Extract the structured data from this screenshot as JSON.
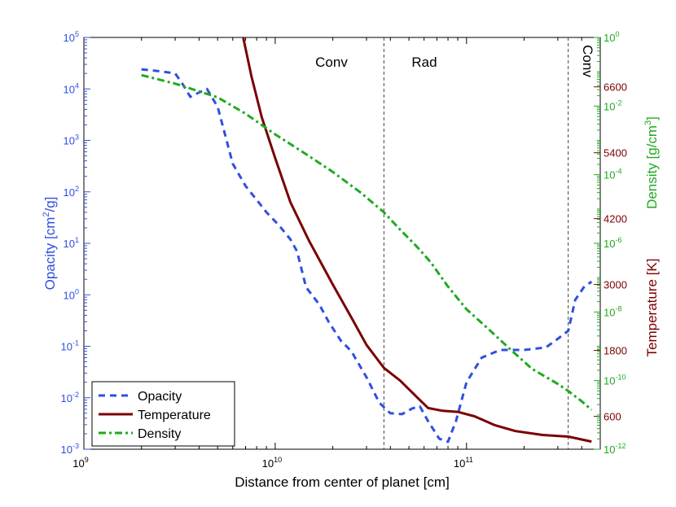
{
  "chart_data": {
    "type": "line",
    "xlabel": "Distance from center of planet [cm]",
    "xlim": [
      1000000000.0,
      500000000000.0
    ],
    "x_ticks": [
      {
        "value": 1000000000.0,
        "base": "10",
        "exp": "9"
      },
      {
        "value": 10000000000.0,
        "base": "10",
        "exp": "10"
      },
      {
        "value": 100000000000.0,
        "base": "10",
        "exp": "11"
      }
    ],
    "left_axis": {
      "label_parts": {
        "pre": "Opacity [cm",
        "sup": "2",
        "post": "/g]"
      },
      "ylim": [
        0.001,
        100000.0
      ],
      "ticks": [
        {
          "value": 100000.0,
          "base": "10",
          "exp": "5"
        },
        {
          "value": 10000.0,
          "base": "10",
          "exp": "4"
        },
        {
          "value": 1000.0,
          "base": "10",
          "exp": "3"
        },
        {
          "value": 100.0,
          "base": "10",
          "exp": "2"
        },
        {
          "value": 10.0,
          "base": "10",
          "exp": "1"
        },
        {
          "value": 1.0,
          "base": "10",
          "exp": "0"
        },
        {
          "value": 0.1,
          "base": "10",
          "exp": "-1"
        },
        {
          "value": 0.01,
          "base": "10",
          "exp": "-2"
        },
        {
          "value": 0.001,
          "base": "10",
          "exp": "-3"
        }
      ]
    },
    "temperature_axis": {
      "label": "Temperature [K]",
      "ylim": [
        0,
        7500
      ],
      "ticks": [
        {
          "value": 600,
          "label": "600"
        },
        {
          "value": 1800,
          "label": "1800"
        },
        {
          "value": 3000,
          "label": "3000"
        },
        {
          "value": 4200,
          "label": "4200"
        },
        {
          "value": 5400,
          "label": "5400"
        },
        {
          "value": 6600,
          "label": "6600"
        }
      ]
    },
    "density_axis": {
      "label_parts": {
        "pre": "Density [g/cm",
        "sup": "3",
        "post": "]"
      },
      "ylim": [
        1e-12,
        1.0
      ],
      "ticks": [
        {
          "value": 1.0,
          "base": "10",
          "exp": "0"
        },
        {
          "value": 0.01,
          "base": "10",
          "exp": "-2"
        },
        {
          "value": 0.0001,
          "base": "10",
          "exp": "-4"
        },
        {
          "value": 1e-06,
          "base": "10",
          "exp": "-6"
        },
        {
          "value": 1e-08,
          "base": "10",
          "exp": "-8"
        },
        {
          "value": 1e-10,
          "base": "10",
          "exp": "-10"
        },
        {
          "value": 1e-12,
          "base": "10",
          "exp": "-12"
        }
      ]
    },
    "boundaries": [
      37000000000.0,
      340000000000.0
    ],
    "regions": [
      "Conv",
      "Rad",
      "Conv"
    ],
    "series": [
      {
        "name": "Opacity",
        "axis": "left",
        "color": "#2f4fe0",
        "style": "dashed",
        "points": [
          [
            2000000000.0,
            24000.0
          ],
          [
            2500000000.0,
            22000.0
          ],
          [
            3000000000.0,
            20000.0
          ],
          [
            3300000000.0,
            12000.0
          ],
          [
            3600000000.0,
            7000.0
          ],
          [
            4000000000.0,
            8500.0
          ],
          [
            4400000000.0,
            10000.0
          ],
          [
            5000000000.0,
            4500.0
          ],
          [
            5500000000.0,
            1200.0
          ],
          [
            6000000000.0,
            350
          ],
          [
            7000000000.0,
            130
          ],
          [
            8000000000.0,
            70
          ],
          [
            9000000000.0,
            40
          ],
          [
            10500000000.0,
            22
          ],
          [
            12000000000.0,
            12
          ],
          [
            13000000000.0,
            7
          ],
          [
            14500000000.0,
            1.4
          ],
          [
            17000000000.0,
            0.65
          ],
          [
            19000000000.0,
            0.3
          ],
          [
            22000000000.0,
            0.13
          ],
          [
            25000000000.0,
            0.08
          ],
          [
            30000000000.0,
            0.025
          ],
          [
            35000000000.0,
            0.008
          ],
          [
            40000000000.0,
            0.005
          ],
          [
            46000000000.0,
            0.0048
          ],
          [
            52000000000.0,
            0.0062
          ],
          [
            57000000000.0,
            0.0068
          ],
          [
            63000000000.0,
            0.0035
          ],
          [
            72000000000.0,
            0.0016
          ],
          [
            80000000000.0,
            0.0014
          ],
          [
            88000000000.0,
            0.0035
          ],
          [
            100000000000.0,
            0.02
          ],
          [
            120000000000.0,
            0.06
          ],
          [
            150000000000.0,
            0.085
          ],
          [
            200000000000.0,
            0.085
          ],
          [
            260000000000.0,
            0.095
          ],
          [
            300000000000.0,
            0.14
          ],
          [
            340000000000.0,
            0.2
          ],
          [
            370000000000.0,
            0.8
          ],
          [
            410000000000.0,
            1.4
          ],
          [
            450000000000.0,
            1.8
          ]
        ]
      },
      {
        "name": "Temperature",
        "axis": "temperature",
        "color": "#7a0000",
        "style": "solid",
        "points": [
          [
            6800000000.0,
            7500
          ],
          [
            7500000000.0,
            6800
          ],
          [
            8500000000.0,
            6050
          ],
          [
            10000000000.0,
            5300
          ],
          [
            12000000000.0,
            4500
          ],
          [
            15000000000.0,
            3800
          ],
          [
            20000000000.0,
            3000
          ],
          [
            25000000000.0,
            2400
          ],
          [
            30000000000.0,
            1900
          ],
          [
            37000000000.0,
            1480
          ],
          [
            45000000000.0,
            1250
          ],
          [
            55000000000.0,
            950
          ],
          [
            63000000000.0,
            750
          ],
          [
            75000000000.0,
            700
          ],
          [
            90000000000.0,
            680
          ],
          [
            110000000000.0,
            600
          ],
          [
            140000000000.0,
            440
          ],
          [
            180000000000.0,
            330
          ],
          [
            250000000000.0,
            260
          ],
          [
            340000000000.0,
            230
          ],
          [
            450000000000.0,
            140
          ]
        ]
      },
      {
        "name": "Density",
        "axis": "density",
        "color": "#1faa1f",
        "style": "dashdot",
        "points": [
          [
            2000000000.0,
            0.08
          ],
          [
            3000000000.0,
            0.045
          ],
          [
            5000000000.0,
            0.018
          ],
          [
            7000000000.0,
            0.006
          ],
          [
            10000000000.0,
            0.0015
          ],
          [
            15000000000.0,
            0.00035
          ],
          [
            20000000000.0,
            0.00012
          ],
          [
            28000000000.0,
            3e-05
          ],
          [
            37000000000.0,
            8e-06
          ],
          [
            45000000000.0,
            2.5e-06
          ],
          [
            55000000000.0,
            8e-07
          ],
          [
            65000000000.0,
            2.8e-07
          ],
          [
            80000000000.0,
            5.5e-08
          ],
          [
            100000000000.0,
            1.2e-08
          ],
          [
            130000000000.0,
            3.2e-09
          ],
          [
            170000000000.0,
            8e-10
          ],
          [
            220000000000.0,
            2.2e-10
          ],
          [
            300000000000.0,
            8e-11
          ],
          [
            340000000000.0,
            5e-11
          ],
          [
            400000000000.0,
            2.5e-11
          ],
          [
            450000000000.0,
            1.4e-11
          ]
        ]
      }
    ]
  }
}
